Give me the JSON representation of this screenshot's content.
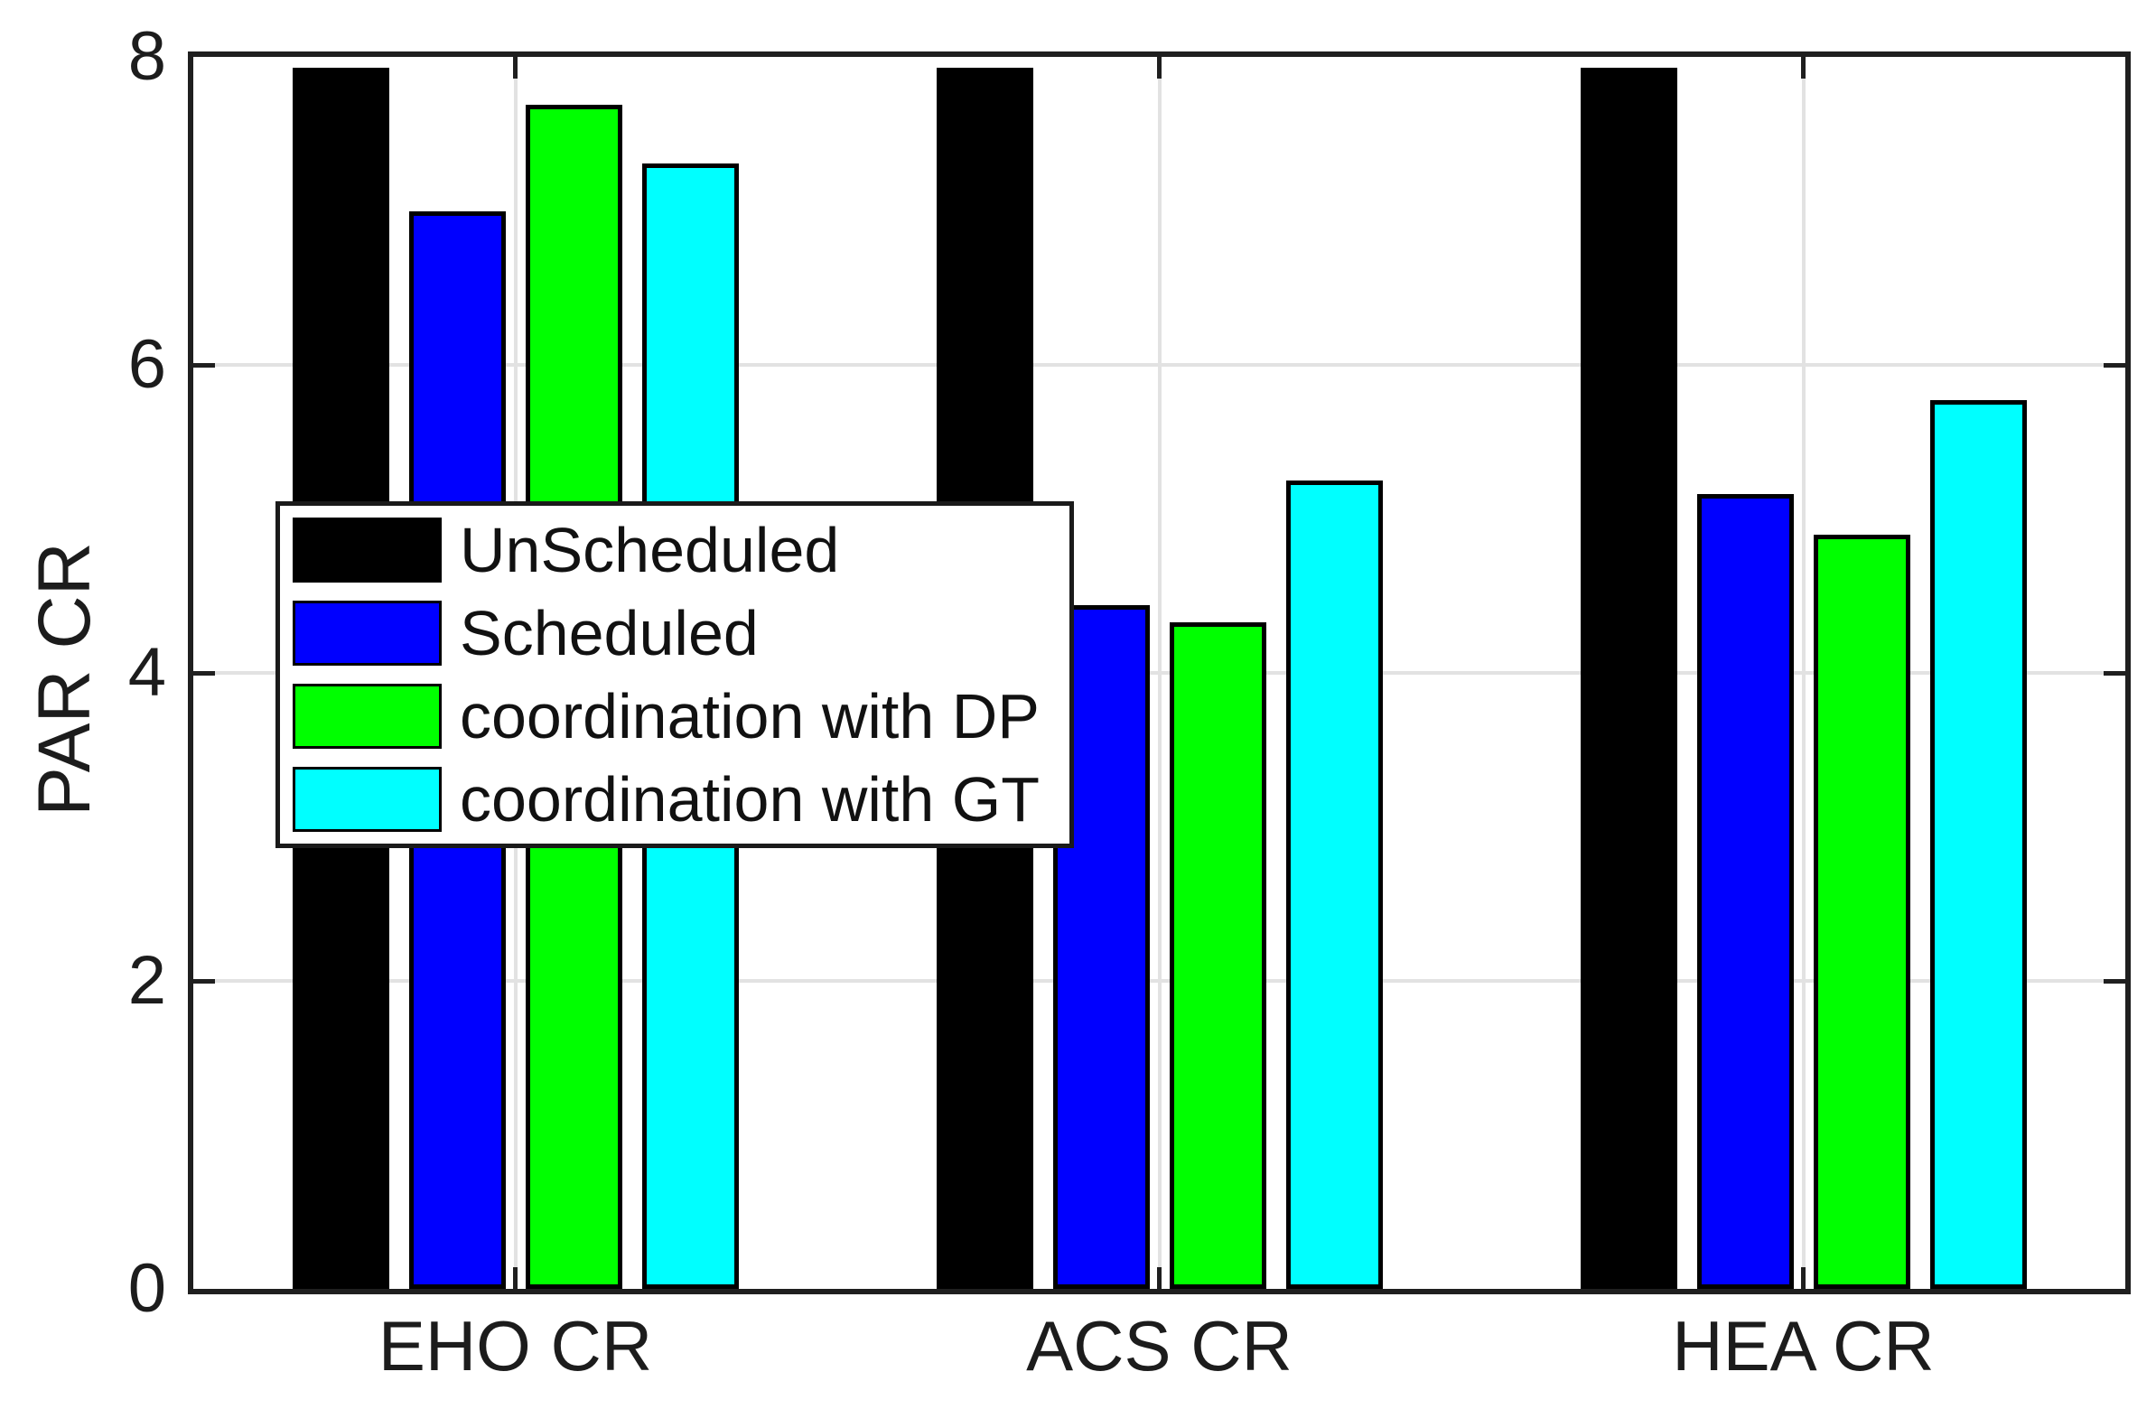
{
  "chart_data": {
    "type": "bar",
    "title": "",
    "xlabel": "",
    "ylabel": "PAR CR",
    "categories": [
      "EHO CR",
      "ACS CR",
      "HEA CR"
    ],
    "series": [
      {
        "name": "UnScheduled",
        "color": "#000000",
        "values": [
          7.93,
          7.93,
          7.93
        ]
      },
      {
        "name": "Scheduled",
        "color": "#0000ff",
        "values": [
          7.0,
          4.44,
          5.16
        ]
      },
      {
        "name": "coordination with DP",
        "color": "#00ff00",
        "values": [
          7.69,
          4.33,
          4.9
        ]
      },
      {
        "name": "coordination with GT",
        "color": "#00ffff",
        "values": [
          7.31,
          5.25,
          5.77
        ]
      }
    ],
    "ylim": [
      0,
      8
    ],
    "yticks": [
      0,
      2,
      4,
      6,
      8
    ],
    "ytick_labels": [
      "0",
      "2",
      "4",
      "6",
      "8"
    ],
    "grid": true,
    "grid_color": "#e2e2e2",
    "frame_color": "#1f1f1f",
    "legend_position": "upper-left-inside",
    "bar_edge_color": "#000000"
  }
}
